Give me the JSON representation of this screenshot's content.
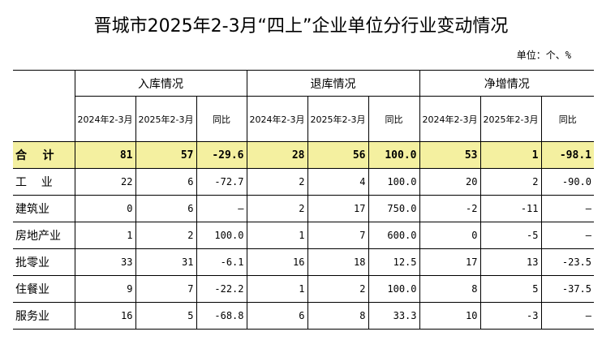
{
  "title": "晋城市2025年2-3月“四上”企业单位分行业变动情况",
  "unit": "单位：个、%",
  "groups": [
    "入库情况",
    "退库情况",
    "净增情况"
  ],
  "subheaders": [
    "2024年2-3月",
    "2025年2-3月",
    "同比",
    "2024年2-3月",
    "2025年2-3月",
    "同比",
    "2024年2-3月",
    "2025年2-3月",
    "同比"
  ],
  "rows": [
    {
      "label": "合    计",
      "values": [
        "81",
        "57",
        "-29.6",
        "28",
        "56",
        "100.0",
        "53",
        "1",
        "-98.1"
      ]
    },
    {
      "label": "工    业",
      "values": [
        "22",
        "6",
        "-72.7",
        "2",
        "4",
        "100.0",
        "20",
        "2",
        "-90.0"
      ]
    },
    {
      "label": "建筑业",
      "values": [
        "0",
        "6",
        "—",
        "2",
        "17",
        "750.0",
        "-2",
        "-11",
        "—"
      ]
    },
    {
      "label": "房地产业",
      "values": [
        "1",
        "2",
        "100.0",
        "1",
        "7",
        "600.0",
        "0",
        "-5",
        "—"
      ]
    },
    {
      "label": "批零业",
      "values": [
        "33",
        "31",
        "-6.1",
        "16",
        "18",
        "12.5",
        "17",
        "13",
        "-23.5"
      ]
    },
    {
      "label": "住餐业",
      "values": [
        "9",
        "7",
        "-22.2",
        "1",
        "2",
        "100.0",
        "8",
        "5",
        "-37.5"
      ]
    },
    {
      "label": "服务业",
      "values": [
        "16",
        "5",
        "-68.8",
        "6",
        "8",
        "33.3",
        "10",
        "-3",
        "—"
      ]
    }
  ],
  "colors": {
    "total_row_bg": "#f4f0a0",
    "border": "#000000"
  }
}
